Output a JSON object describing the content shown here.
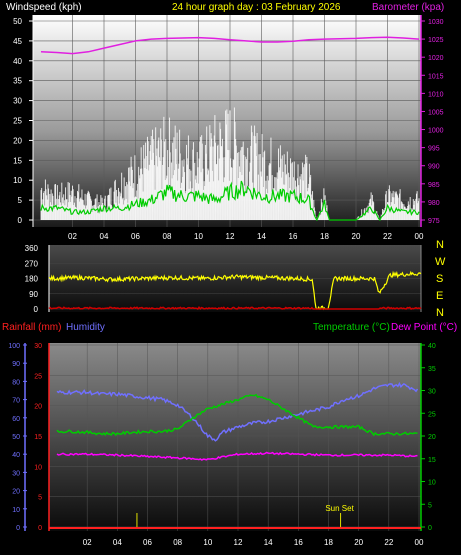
{
  "header": {
    "left_title": "Windspeed (kph)",
    "center_title": "24 hour graph day : 03 February 2026",
    "right_title": "Barometer (kpa)"
  },
  "colors": {
    "wind_axis": "#ffffff",
    "baro": "#e020e0",
    "wind_gust": "#ffffff",
    "wind_avg": "#00cc00",
    "wind_dir": "#ffff00",
    "wind_low": "#d00000",
    "rain": "#ff2020",
    "humidity": "#7070ff",
    "temperature": "#00cc00",
    "dewpoint": "#ff00ff",
    "rain_marks": "#e0e000"
  },
  "chart_data": [
    {
      "type": "line",
      "title": "24 hour graph day : 03 February 2026",
      "ylabel": "Windspeed (kph)",
      "ylim": [
        0,
        50
      ],
      "y_ticks": [
        "0",
        "5",
        "10",
        "15",
        "20",
        "25",
        "30",
        "35",
        "40",
        "45",
        "50"
      ],
      "y2label": "Barometer (kpa)",
      "y2lim": [
        975,
        1030
      ],
      "y2_ticks": [
        "975",
        "980",
        "985",
        "990",
        "995",
        "1000",
        "1005",
        "1010",
        "1015",
        "1020",
        "1025",
        "1030"
      ],
      "x_ticks": [
        "02",
        "04",
        "06",
        "08",
        "10",
        "12",
        "14",
        "16",
        "18",
        "20",
        "22",
        "00"
      ],
      "x_ticks_hours": [
        2,
        4,
        6,
        8,
        10,
        12,
        14,
        16,
        18,
        20,
        22,
        24
      ],
      "grid": true,
      "series": [
        {
          "key": "gust",
          "axis": "left",
          "x": [
            0,
            1,
            2,
            3,
            4,
            5,
            6,
            7,
            8,
            9,
            10,
            11,
            12,
            13,
            14,
            15,
            16,
            17,
            17.5,
            18,
            18.3,
            19,
            20,
            21,
            21.5,
            22,
            23,
            24
          ],
          "values": [
            8,
            6,
            7,
            5,
            4,
            9,
            12,
            15,
            18,
            16,
            14,
            18,
            20,
            17,
            15,
            14,
            12,
            11,
            0,
            6,
            0,
            0,
            0,
            5,
            0,
            6,
            5,
            5
          ]
        },
        {
          "key": "average",
          "axis": "left",
          "x": [
            0,
            1,
            2,
            3,
            4,
            5,
            6,
            7,
            8,
            9,
            10,
            11,
            12,
            13,
            14,
            15,
            16,
            17,
            17.5,
            18,
            18.3,
            19,
            20,
            21,
            21.5,
            22,
            23,
            24
          ],
          "values": [
            3,
            3,
            2,
            2,
            3,
            3,
            4,
            5,
            7,
            6,
            6,
            5,
            7,
            8,
            6,
            6,
            6,
            5,
            0,
            4,
            0,
            0,
            0,
            3,
            0,
            3,
            2,
            2
          ]
        },
        {
          "key": "barometer",
          "axis": "right",
          "x": [
            0,
            1,
            2,
            3,
            4,
            5,
            6,
            7,
            8,
            9,
            10,
            11,
            12,
            13,
            14,
            15,
            16,
            17,
            18,
            19,
            20,
            21,
            22,
            23,
            24
          ],
          "values": [
            1021.5,
            1021.3,
            1021,
            1021.5,
            1022.5,
            1023.5,
            1024.5,
            1025,
            1025.2,
            1025.3,
            1025.4,
            1025.2,
            1024.8,
            1024.5,
            1024.2,
            1024.2,
            1024.4,
            1024.8,
            1025,
            1025.1,
            1025.2,
            1025.4,
            1025.5,
            1025.3,
            1025
          ]
        }
      ]
    },
    {
      "type": "line",
      "y_ticks": [
        "0",
        "90",
        "180",
        "270",
        "360"
      ],
      "ylim": [
        0,
        360
      ],
      "compass_labels": [
        "N",
        "W",
        "S",
        "E",
        "N"
      ],
      "x_hours": [
        0,
        24
      ],
      "series": [
        {
          "key": "direction",
          "x": [
            0,
            2,
            4,
            6,
            8,
            10,
            12,
            14,
            16,
            17,
            17.2,
            18,
            18.4,
            19,
            20,
            21,
            21.3,
            22,
            23,
            24
          ],
          "values": [
            180,
            185,
            175,
            180,
            185,
            180,
            190,
            185,
            180,
            175,
            5,
            5,
            180,
            180,
            180,
            180,
            90,
            200,
            205,
            210
          ]
        },
        {
          "key": "low",
          "x": [
            0,
            24
          ],
          "values": [
            0,
            0
          ]
        }
      ]
    },
    {
      "type": "line",
      "left_label": "Rainfall (mm)",
      "left2_label": "Humidity",
      "right_label": "Temperature (°C)",
      "right2_label": "Dew Point (°C)",
      "humidity_ylim": [
        0,
        100
      ],
      "humidity_ticks": [
        "0",
        "10",
        "20",
        "30",
        "40",
        "50",
        "60",
        "70",
        "80",
        "90",
        "100"
      ],
      "rain_ylim": [
        0,
        30
      ],
      "rain_ticks": [
        "0",
        "5",
        "10",
        "15",
        "20",
        "25",
        "30"
      ],
      "temp_ylim": [
        0,
        40
      ],
      "temp_ticks": [
        "0",
        "5",
        "10",
        "15",
        "20",
        "25",
        "30",
        "35",
        "40"
      ],
      "x_ticks": [
        "02",
        "04",
        "06",
        "08",
        "10",
        "12",
        "14",
        "16",
        "18",
        "20",
        "22",
        "00"
      ],
      "x_ticks_hours": [
        2,
        4,
        6,
        8,
        10,
        12,
        14,
        16,
        18,
        20,
        22,
        24
      ],
      "annotation": "Sun Set",
      "annotation_hour": 18.8,
      "series": [
        {
          "key": "humidity",
          "x": [
            0,
            1,
            2,
            3,
            4,
            5,
            6,
            7,
            8,
            9,
            10,
            10.5,
            11,
            12,
            13,
            14,
            15,
            16,
            17,
            18,
            19,
            20,
            21,
            22,
            23,
            24
          ],
          "values": [
            74,
            74,
            74,
            73,
            73,
            72,
            71,
            70,
            67,
            60,
            50,
            48,
            52,
            55,
            57,
            58,
            60,
            62,
            64,
            66,
            70,
            72,
            76,
            78,
            78,
            75
          ]
        },
        {
          "key": "temperature",
          "x": [
            0,
            1,
            2,
            3,
            4,
            5,
            6,
            7,
            8,
            9,
            10,
            11,
            12,
            13,
            14,
            15,
            16,
            17,
            18,
            19,
            20,
            21,
            22,
            23,
            24
          ],
          "values": [
            21,
            21,
            20.8,
            20.5,
            20.5,
            20.8,
            21,
            21,
            21.5,
            24,
            26,
            27,
            28,
            29,
            28,
            26,
            24,
            22,
            22,
            22,
            22,
            20.5,
            20.5,
            20.5,
            20.5
          ]
        },
        {
          "key": "dewpoint",
          "x": [
            0,
            2,
            4,
            6,
            8,
            10,
            12,
            14,
            16,
            18,
            20,
            22,
            24
          ],
          "values": [
            16,
            16,
            15.8,
            15.5,
            15.2,
            14.8,
            16,
            16.2,
            16,
            15.8,
            15.8,
            15.8,
            15.5
          ]
        },
        {
          "key": "rain",
          "x": [
            0,
            24
          ],
          "values": [
            0,
            0
          ]
        }
      ]
    }
  ]
}
